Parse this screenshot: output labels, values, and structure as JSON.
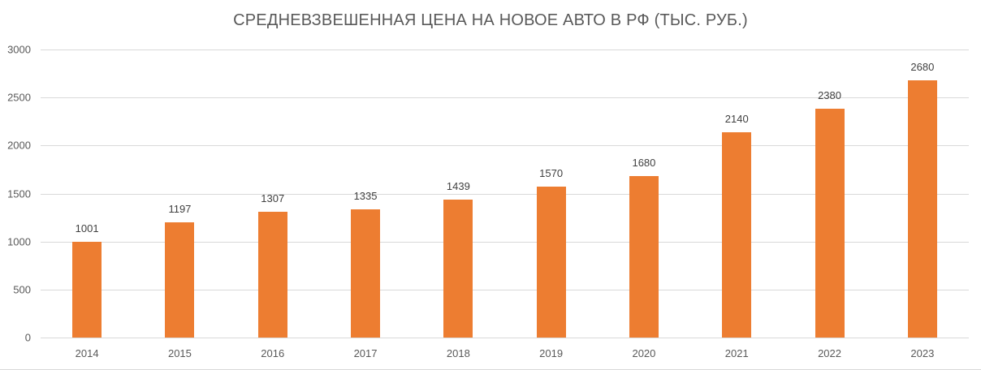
{
  "chart_data": {
    "type": "bar",
    "title": "СРЕДНЕВЗВЕШЕННАЯ ЦЕНА НА НОВОЕ АВТО В РФ (ТЫС. РУБ.)",
    "xlabel": "",
    "ylabel": "",
    "categories": [
      "2014",
      "2015",
      "2016",
      "2017",
      "2018",
      "2019",
      "2020",
      "2021",
      "2022",
      "2023"
    ],
    "values": [
      1001,
      1197,
      1307,
      1335,
      1439,
      1570,
      1680,
      2140,
      2380,
      2680
    ],
    "ylim": [
      0,
      3000
    ],
    "yticks": [
      "0",
      "500",
      "1000",
      "1500",
      "2000",
      "2500",
      "3000"
    ],
    "grid": true,
    "legend": null,
    "data_labels": true,
    "bar_color": "#ED7D31"
  }
}
